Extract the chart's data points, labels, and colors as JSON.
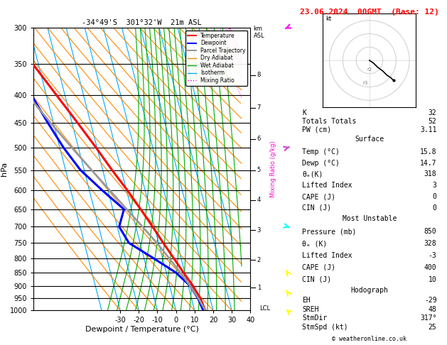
{
  "title_left": "-34°49'S  301°32'W  21m ASL",
  "title_right": "23.06.2024  00GMT  (Base: 12)",
  "xlabel": "Dewpoint / Temperature (°C)",
  "pressure_levels": [
    300,
    350,
    400,
    450,
    500,
    550,
    600,
    650,
    700,
    750,
    800,
    850,
    900,
    950,
    1000
  ],
  "background": "#ffffff",
  "temp_profile": {
    "pressure": [
      1000,
      950,
      900,
      850,
      800,
      750,
      700,
      650,
      600,
      550,
      500,
      450,
      400,
      350,
      300
    ],
    "temperature": [
      15.8,
      14.8,
      12.5,
      9.2,
      6.0,
      2.5,
      -1.0,
      -5.0,
      -9.5,
      -15.0,
      -20.5,
      -27.0,
      -34.5,
      -43.0,
      -52.0
    ],
    "color": "#ff0000",
    "linewidth": 2.2
  },
  "dewpoint_profile": {
    "pressure": [
      1000,
      950,
      900,
      850,
      800,
      750,
      700,
      650,
      600,
      550,
      500,
      450,
      400,
      350,
      300
    ],
    "temperature": [
      14.7,
      13.5,
      11.0,
      5.0,
      -5.0,
      -16.0,
      -19.0,
      -14.0,
      -23.0,
      -32.0,
      -38.0,
      -43.0,
      -48.0,
      -52.0,
      -56.0
    ],
    "color": "#0000ff",
    "linewidth": 2.2
  },
  "parcel_profile": {
    "pressure": [
      1000,
      950,
      900,
      850,
      800,
      750,
      700,
      650,
      600,
      550,
      500,
      450,
      400,
      350,
      300
    ],
    "temperature": [
      15.8,
      13.8,
      11.0,
      7.5,
      3.5,
      -1.0,
      -6.5,
      -12.5,
      -19.0,
      -26.0,
      -33.5,
      -41.5,
      -50.0,
      -59.0,
      -68.0
    ],
    "color": "#999999",
    "linewidth": 2.0
  },
  "isotherm_color": "#00aaff",
  "dry_adiabat_color": "#ff8800",
  "wet_adiabat_color": "#00aa00",
  "mixing_ratio_color": "#ff00cc",
  "mixing_ratio_values": [
    1,
    2,
    3,
    4,
    5,
    8,
    10,
    15,
    20,
    25
  ],
  "km_ticks": [
    1,
    2,
    3,
    4,
    5,
    6,
    7,
    8
  ],
  "km_pressures": [
    907,
    806,
    710,
    625,
    550,
    482,
    422,
    367
  ],
  "stats": {
    "K": "32",
    "Totals Totals": "52",
    "PW (cm)": "3.11",
    "Surface_Temp": "15.8",
    "Surface_Dewp": "14.7",
    "Surface_theta_e": "318",
    "Surface_LI": "3",
    "Surface_CAPE": "0",
    "Surface_CIN": "0",
    "MU_Pressure": "850",
    "MU_theta_e": "328",
    "MU_LI": "-3",
    "MU_CAPE": "400",
    "MU_CIN": "10",
    "EH": "-29",
    "SREH": "48",
    "StmDir": "317°",
    "StmSpd": "25"
  },
  "copyright": "© weatheronline.co.uk",
  "wind_barbs": {
    "pressures": [
      1000,
      950,
      900,
      850,
      800,
      750,
      700,
      650,
      600,
      550,
      500,
      450,
      400,
      350,
      300
    ],
    "u": [
      -2,
      -2,
      -3,
      -3,
      -4,
      -4,
      -5,
      -5,
      -5,
      -5,
      -5,
      -5,
      -5,
      -5,
      -5
    ],
    "v": [
      5,
      5,
      7,
      8,
      10,
      10,
      10,
      12,
      12,
      12,
      12,
      12,
      12,
      12,
      12
    ]
  }
}
